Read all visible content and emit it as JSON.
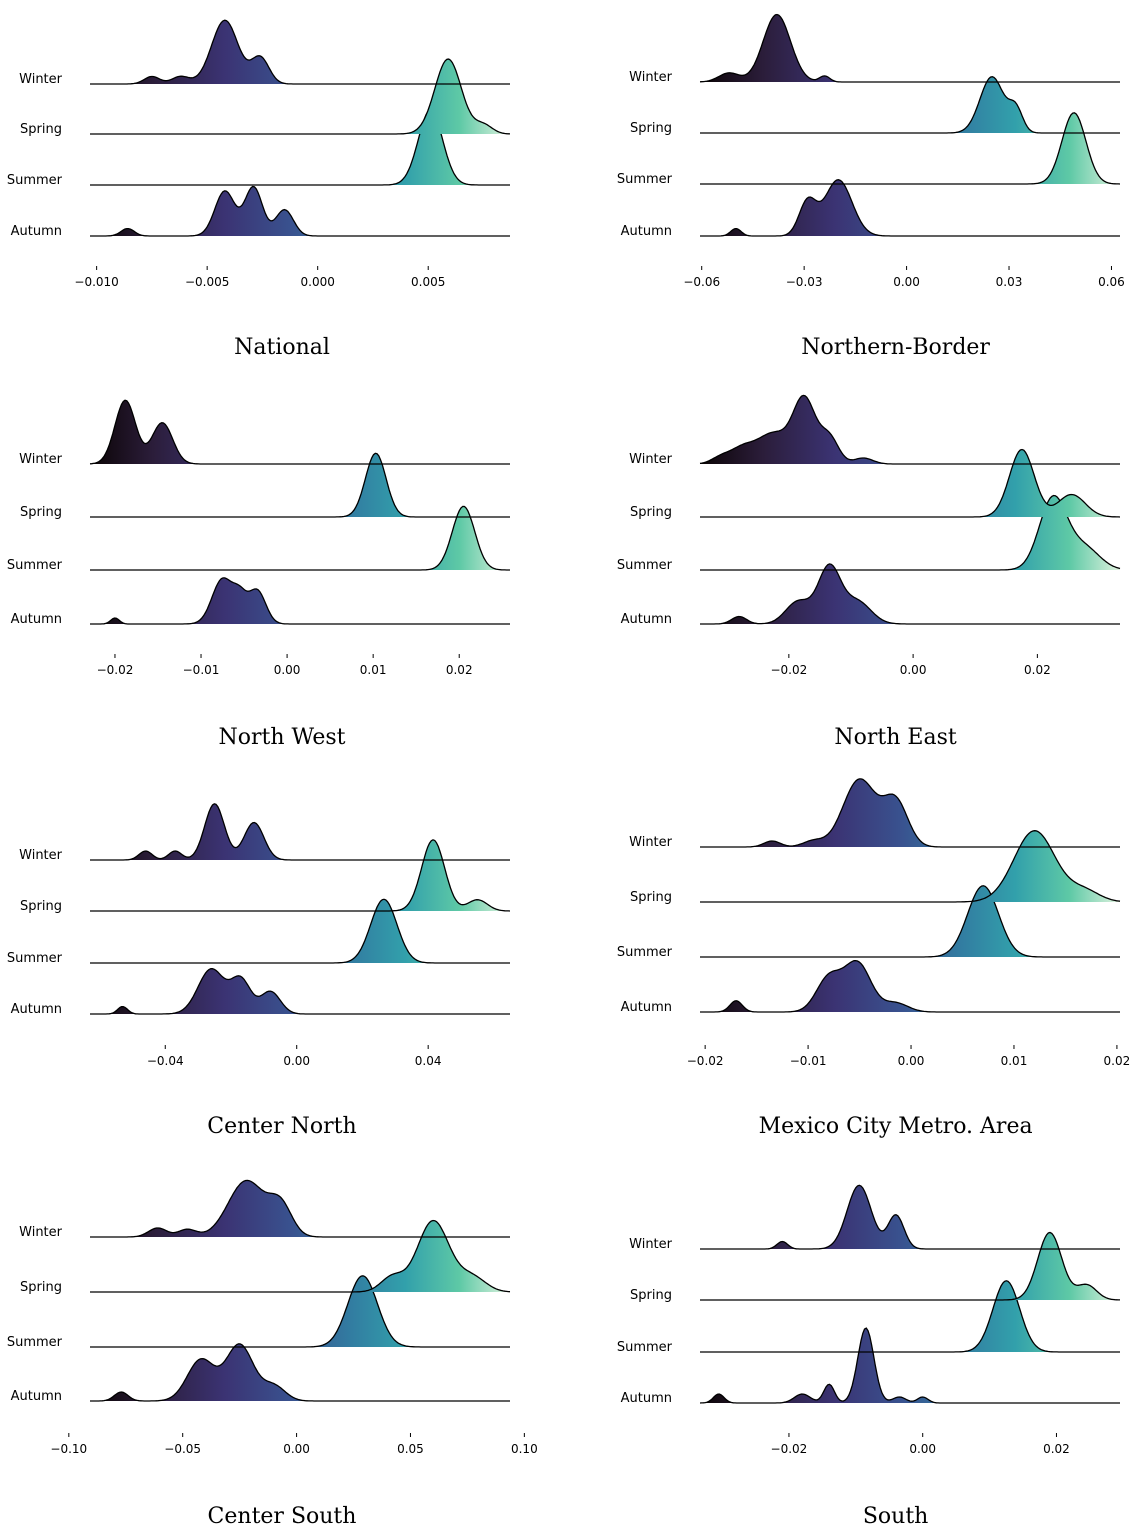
{
  "chart_data": [
    {
      "type": "ridgeline",
      "title": "National",
      "seasons": [
        "Winter",
        "Spring",
        "Summer",
        "Autumn"
      ],
      "xlim": [
        -0.0103,
        0.0087
      ],
      "ticks": [
        -0.01,
        -0.005,
        0.0,
        0.005
      ],
      "tick_labels": [
        "−0.010",
        "−0.005",
        "0.000",
        "0.005"
      ],
      "series": [
        {
          "name": "Winter",
          "peaks": [
            [
              -0.0075,
              0.00035,
              0.1
            ],
            [
              -0.0062,
              0.0004,
              0.1
            ],
            [
              -0.0042,
              0.0006,
              0.85
            ],
            [
              -0.0026,
              0.0004,
              0.35
            ]
          ]
        },
        {
          "name": "Spring",
          "peaks": [
            [
              0.0059,
              0.0006,
              1.0
            ],
            [
              0.0075,
              0.0004,
              0.12
            ]
          ]
        },
        {
          "name": "Summer",
          "peaks": [
            [
              0.0051,
              0.00055,
              1.0
            ]
          ]
        },
        {
          "name": "Autumn",
          "peaks": [
            [
              -0.0086,
              0.0003,
              0.1
            ],
            [
              -0.0042,
              0.00045,
              0.6
            ],
            [
              -0.0029,
              0.0004,
              0.65
            ],
            [
              -0.0015,
              0.0004,
              0.35
            ]
          ]
        }
      ]
    },
    {
      "type": "ridgeline",
      "title": "Northern-Border",
      "seasons": [
        "Winter",
        "Spring",
        "Summer",
        "Autumn"
      ],
      "xlim": [
        -0.0605,
        0.0625
      ],
      "ticks": [
        -0.06,
        -0.03,
        0.0,
        0.03,
        0.06
      ],
      "tick_labels": [
        "−0.06",
        "−0.03",
        "0.00",
        "0.03",
        "0.06"
      ],
      "series": [
        {
          "name": "Winter",
          "peaks": [
            [
              -0.052,
              0.003,
              0.12
            ],
            [
              -0.038,
              0.004,
              0.9
            ],
            [
              -0.024,
              0.0015,
              0.08
            ]
          ]
        },
        {
          "name": "Spring",
          "peaks": [
            [
              0.025,
              0.0035,
              0.75
            ],
            [
              0.032,
              0.002,
              0.3
            ]
          ]
        },
        {
          "name": "Summer",
          "peaks": [
            [
              0.049,
              0.0035,
              0.95
            ]
          ]
        },
        {
          "name": "Autumn",
          "peaks": [
            [
              -0.05,
              0.0015,
              0.1
            ],
            [
              -0.029,
              0.0025,
              0.45
            ],
            [
              -0.02,
              0.004,
              0.75
            ]
          ]
        }
      ]
    },
    {
      "type": "ridgeline",
      "title": "North West",
      "seasons": [
        "Winter",
        "Spring",
        "Summer",
        "Autumn"
      ],
      "xlim": [
        -0.0229,
        0.0259
      ],
      "ticks": [
        -0.02,
        -0.01,
        0.0,
        0.01,
        0.02
      ],
      "tick_labels": [
        "−0.02",
        "−0.01",
        "0.00",
        "0.01",
        "0.02"
      ],
      "series": [
        {
          "name": "Winter",
          "peaks": [
            [
              -0.0188,
              0.0012,
              0.85
            ],
            [
              -0.0145,
              0.0012,
              0.55
            ]
          ]
        },
        {
          "name": "Spring",
          "peaks": [
            [
              0.0103,
              0.0012,
              0.85
            ]
          ]
        },
        {
          "name": "Summer",
          "peaks": [
            [
              0.0205,
              0.0013,
              0.85
            ]
          ]
        },
        {
          "name": "Autumn",
          "peaks": [
            [
              -0.02,
              0.0005,
              0.08
            ],
            [
              -0.0075,
              0.0012,
              0.6
            ],
            [
              -0.0055,
              0.0008,
              0.3
            ],
            [
              -0.0035,
              0.001,
              0.45
            ]
          ]
        }
      ]
    },
    {
      "type": "ridgeline",
      "title": "North East",
      "seasons": [
        "Winter",
        "Spring",
        "Summer",
        "Autumn"
      ],
      "xlim": [
        -0.0343,
        0.0333
      ],
      "ticks": [
        -0.02,
        0.0,
        0.02
      ],
      "tick_labels": [
        "−0.02",
        "0.00",
        "0.02"
      ],
      "series": [
        {
          "name": "Winter",
          "peaks": [
            [
              -0.031,
              0.0015,
              0.08
            ],
            [
              -0.0275,
              0.002,
              0.2
            ],
            [
              -0.0225,
              0.0025,
              0.4
            ],
            [
              -0.0175,
              0.0018,
              0.85
            ],
            [
              -0.0135,
              0.0015,
              0.35
            ],
            [
              -0.008,
              0.0015,
              0.08
            ]
          ]
        },
        {
          "name": "Spring",
          "peaks": [
            [
              0.0175,
              0.002,
              0.9
            ],
            [
              0.0255,
              0.0022,
              0.3
            ]
          ]
        },
        {
          "name": "Summer",
          "peaks": [
            [
              0.0225,
              0.0022,
              0.95
            ],
            [
              0.0275,
              0.0025,
              0.3
            ]
          ]
        },
        {
          "name": "Autumn",
          "peaks": [
            [
              -0.028,
              0.0012,
              0.1
            ],
            [
              -0.0185,
              0.002,
              0.3
            ],
            [
              -0.0135,
              0.0018,
              0.75
            ],
            [
              -0.009,
              0.0022,
              0.3
            ]
          ]
        }
      ]
    },
    {
      "type": "ridgeline",
      "title": "Center North",
      "seasons": [
        "Winter",
        "Spring",
        "Summer",
        "Autumn"
      ],
      "xlim": [
        -0.0629,
        0.0649
      ],
      "ticks": [
        -0.04,
        0.0,
        0.04
      ],
      "tick_labels": [
        "−0.04",
        "0.00",
        "0.04"
      ],
      "series": [
        {
          "name": "Winter",
          "peaks": [
            [
              -0.046,
              0.002,
              0.12
            ],
            [
              -0.037,
              0.002,
              0.12
            ],
            [
              -0.025,
              0.003,
              0.75
            ],
            [
              -0.013,
              0.003,
              0.5
            ]
          ]
        },
        {
          "name": "Spring",
          "peaks": [
            [
              0.0415,
              0.0035,
              0.95
            ],
            [
              0.055,
              0.003,
              0.15
            ]
          ]
        },
        {
          "name": "Summer",
          "peaks": [
            [
              0.0265,
              0.004,
              0.85
            ]
          ]
        },
        {
          "name": "Autumn",
          "peaks": [
            [
              -0.053,
              0.0015,
              0.1
            ],
            [
              -0.026,
              0.004,
              0.6
            ],
            [
              -0.017,
              0.003,
              0.45
            ],
            [
              -0.008,
              0.003,
              0.3
            ]
          ]
        }
      ]
    },
    {
      "type": "ridgeline",
      "title": "Mexico City Metro. Area",
      "seasons": [
        "Winter",
        "Spring",
        "Summer",
        "Autumn"
      ],
      "xlim": [
        -0.0205,
        0.0203
      ],
      "ticks": [
        -0.02,
        -0.01,
        0.0,
        0.01,
        0.02
      ],
      "tick_labels": [
        "−0.02",
        "−0.01",
        "0.00",
        "0.01",
        "0.02"
      ],
      "series": [
        {
          "name": "Winter",
          "peaks": [
            [
              -0.0135,
              0.0008,
              0.08
            ],
            [
              -0.0095,
              0.001,
              0.08
            ],
            [
              -0.005,
              0.0016,
              0.9
            ],
            [
              -0.0015,
              0.0012,
              0.6
            ]
          ]
        },
        {
          "name": "Spring",
          "peaks": [
            [
              0.012,
              0.002,
              0.95
            ],
            [
              0.0168,
              0.0015,
              0.15
            ]
          ]
        },
        {
          "name": "Summer",
          "peaks": [
            [
              0.007,
              0.0015,
              0.95
            ]
          ]
        },
        {
          "name": "Autumn",
          "peaks": [
            [
              -0.017,
              0.0006,
              0.15
            ],
            [
              -0.008,
              0.0012,
              0.45
            ],
            [
              -0.0052,
              0.0013,
              0.65
            ],
            [
              -0.0015,
              0.0012,
              0.12
            ]
          ]
        }
      ]
    },
    {
      "type": "ridgeline",
      "title": "Center South",
      "seasons": [
        "Winter",
        "Spring",
        "Summer",
        "Autumn"
      ],
      "xlim": [
        -0.0907,
        0.0937
      ],
      "ticks": [
        -0.1,
        -0.05,
        0.0,
        0.05,
        0.1
      ],
      "tick_labels": [
        "−0.10",
        "−0.05",
        "0.00",
        "0.05",
        "0.10"
      ],
      "series": [
        {
          "name": "Winter",
          "peaks": [
            [
              -0.061,
              0.004,
              0.12
            ],
            [
              -0.048,
              0.004,
              0.1
            ],
            [
              -0.022,
              0.008,
              0.75
            ],
            [
              -0.007,
              0.005,
              0.4
            ]
          ]
        },
        {
          "name": "Spring",
          "peaks": [
            [
              0.06,
              0.007,
              0.95
            ],
            [
              0.077,
              0.006,
              0.2
            ],
            [
              0.042,
              0.005,
              0.2
            ]
          ]
        },
        {
          "name": "Summer",
          "peaks": [
            [
              0.029,
              0.0065,
              0.95
            ]
          ]
        },
        {
          "name": "Autumn",
          "peaks": [
            [
              -0.077,
              0.003,
              0.12
            ],
            [
              -0.042,
              0.006,
              0.55
            ],
            [
              -0.025,
              0.006,
              0.75
            ],
            [
              -0.01,
              0.005,
              0.2
            ]
          ]
        }
      ]
    },
    {
      "type": "ridgeline",
      "title": "South",
      "seasons": [
        "Winter",
        "Spring",
        "Summer",
        "Autumn"
      ],
      "xlim": [
        -0.0333,
        0.0295
      ],
      "ticks": [
        -0.02,
        0.0,
        0.02
      ],
      "tick_labels": [
        "−0.02",
        "0.00",
        "0.02"
      ],
      "series": [
        {
          "name": "Winter",
          "peaks": [
            [
              -0.021,
              0.0008,
              0.1
            ],
            [
              -0.0095,
              0.0018,
              0.85
            ],
            [
              -0.004,
              0.0012,
              0.45
            ]
          ]
        },
        {
          "name": "Spring",
          "peaks": [
            [
              0.019,
              0.0018,
              0.9
            ],
            [
              0.0245,
              0.0015,
              0.2
            ]
          ]
        },
        {
          "name": "Summer",
          "peaks": [
            [
              0.0125,
              0.002,
              0.95
            ]
          ]
        },
        {
          "name": "Autumn",
          "peaks": [
            [
              -0.0305,
              0.0008,
              0.12
            ],
            [
              -0.018,
              0.0012,
              0.12
            ],
            [
              -0.014,
              0.0008,
              0.25
            ],
            [
              -0.0085,
              0.0012,
              1.0
            ],
            [
              -0.0035,
              0.001,
              0.08
            ],
            [
              0.0,
              0.0008,
              0.08
            ]
          ]
        }
      ]
    }
  ]
}
